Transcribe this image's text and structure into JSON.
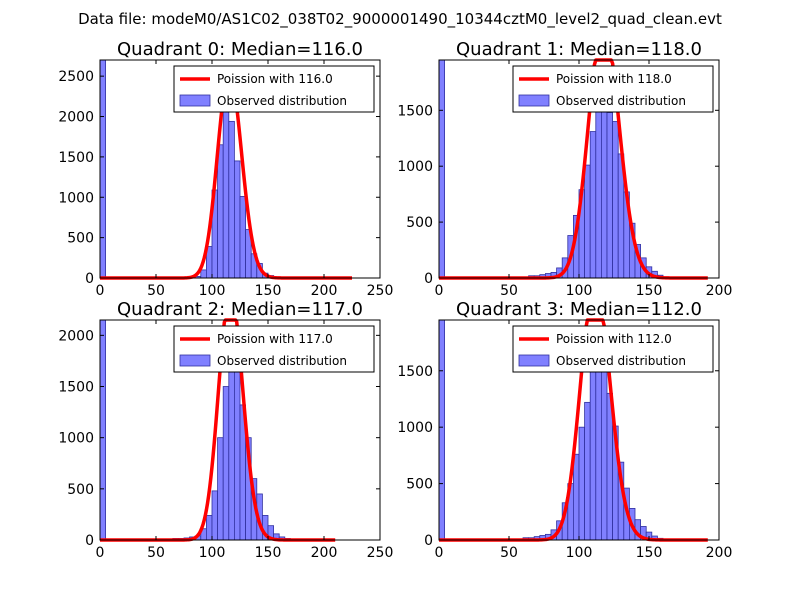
{
  "figure_title": "Data file: modeM0/AS1C02_038T02_9000001490_10344cztM0_level2_quad_clean.evt",
  "colors": {
    "bar_fill": "#8080ff",
    "bar_edge": "#3030a0",
    "fit_line": "#ff0000",
    "axis": "#000000"
  },
  "chart_data": [
    {
      "type": "bar",
      "title": "Quadrant 0: Median=116.0",
      "xlim": [
        0,
        250
      ],
      "ylim": [
        0,
        2700
      ],
      "xticks": [
        "0",
        "50",
        "100",
        "150",
        "200",
        "250"
      ],
      "yticks": [
        "0",
        "500",
        "1000",
        "1500",
        "2000",
        "2500"
      ],
      "xtick_values": [
        0,
        50,
        100,
        150,
        200,
        250
      ],
      "ytick_values": [
        0,
        500,
        1000,
        1500,
        2000,
        2500
      ],
      "bin_width": 5,
      "bins": [
        [
          0,
          2700
        ],
        [
          85,
          20
        ],
        [
          90,
          100
        ],
        [
          95,
          390
        ],
        [
          100,
          1090
        ],
        [
          105,
          1650
        ],
        [
          110,
          2180
        ],
        [
          115,
          1940
        ],
        [
          120,
          1450
        ],
        [
          125,
          1010
        ],
        [
          130,
          600
        ],
        [
          135,
          300
        ],
        [
          140,
          180
        ],
        [
          145,
          60
        ],
        [
          150,
          30
        ],
        [
          155,
          15
        ],
        [
          160,
          8
        ]
      ],
      "poisson_mean": 116.0,
      "poisson_xmax": 225,
      "legend": [
        "Poission with 116.0",
        "Observed distribution"
      ]
    },
    {
      "type": "bar",
      "title": "Quadrant 1: Median=118.0",
      "xlim": [
        0,
        200
      ],
      "ylim": [
        0,
        1950
      ],
      "xticks": [
        "0",
        "50",
        "100",
        "150",
        "200"
      ],
      "yticks": [
        "0",
        "500",
        "1000",
        "1500"
      ],
      "xtick_values": [
        0,
        50,
        100,
        150,
        200
      ],
      "ytick_values": [
        0,
        500,
        1000,
        1500
      ],
      "bin_width": 4,
      "bins": [
        [
          0,
          1950
        ],
        [
          64,
          20
        ],
        [
          68,
          20
        ],
        [
          72,
          30
        ],
        [
          76,
          40
        ],
        [
          80,
          50
        ],
        [
          84,
          90
        ],
        [
          88,
          180
        ],
        [
          92,
          380
        ],
        [
          96,
          560
        ],
        [
          100,
          790
        ],
        [
          104,
          1010
        ],
        [
          108,
          1310
        ],
        [
          112,
          1520
        ],
        [
          116,
          1700
        ],
        [
          120,
          1480
        ],
        [
          124,
          1400
        ],
        [
          128,
          1110
        ],
        [
          132,
          770
        ],
        [
          136,
          490
        ],
        [
          140,
          300
        ],
        [
          144,
          180
        ],
        [
          148,
          100
        ],
        [
          152,
          60
        ],
        [
          156,
          25
        ],
        [
          160,
          10
        ]
      ],
      "poisson_mean": 118.0,
      "poisson_xmax": 192,
      "legend": [
        "Poission with 118.0",
        "Observed distribution"
      ]
    },
    {
      "type": "bar",
      "title": "Quadrant 2: Median=117.0",
      "xlim": [
        0,
        250
      ],
      "ylim": [
        0,
        2150
      ],
      "xticks": [
        "0",
        "50",
        "100",
        "150",
        "200",
        "250"
      ],
      "yticks": [
        "0",
        "500",
        "1000",
        "1500",
        "2000"
      ],
      "xtick_values": [
        0,
        50,
        100,
        150,
        200,
        250
      ],
      "ytick_values": [
        0,
        500,
        1000,
        1500,
        2000
      ],
      "bin_width": 5,
      "bins": [
        [
          0,
          2150
        ],
        [
          65,
          15
        ],
        [
          70,
          15
        ],
        [
          75,
          20
        ],
        [
          80,
          30
        ],
        [
          85,
          40
        ],
        [
          90,
          110
        ],
        [
          95,
          240
        ],
        [
          100,
          480
        ],
        [
          105,
          1000
        ],
        [
          110,
          1500
        ],
        [
          115,
          1950
        ],
        [
          120,
          1750
        ],
        [
          125,
          1320
        ],
        [
          130,
          1000
        ],
        [
          135,
          600
        ],
        [
          140,
          450
        ],
        [
          145,
          240
        ],
        [
          150,
          140
        ],
        [
          155,
          60
        ],
        [
          160,
          30
        ],
        [
          165,
          15
        ]
      ],
      "poisson_mean": 117.0,
      "poisson_xmax": 210,
      "legend": [
        "Poission with 117.0",
        "Observed distribution"
      ]
    },
    {
      "type": "bar",
      "title": "Quadrant 3: Median=112.0",
      "xlim": [
        0,
        200
      ],
      "ylim": [
        0,
        1950
      ],
      "xticks": [
        "0",
        "50",
        "100",
        "150",
        "200"
      ],
      "yticks": [
        "0",
        "500",
        "1000",
        "1500"
      ],
      "xtick_values": [
        0,
        50,
        100,
        150,
        200
      ],
      "ytick_values": [
        0,
        500,
        1000,
        1500
      ],
      "bin_width": 4,
      "bins": [
        [
          0,
          1950
        ],
        [
          60,
          20
        ],
        [
          64,
          20
        ],
        [
          68,
          30
        ],
        [
          72,
          40
        ],
        [
          76,
          50
        ],
        [
          80,
          90
        ],
        [
          84,
          170
        ],
        [
          88,
          330
        ],
        [
          92,
          500
        ],
        [
          96,
          760
        ],
        [
          100,
          1000
        ],
        [
          104,
          1220
        ],
        [
          108,
          1530
        ],
        [
          112,
          1720
        ],
        [
          116,
          1560
        ],
        [
          120,
          1300
        ],
        [
          124,
          1010
        ],
        [
          128,
          690
        ],
        [
          132,
          460
        ],
        [
          136,
          280
        ],
        [
          140,
          180
        ],
        [
          144,
          120
        ],
        [
          148,
          70
        ],
        [
          152,
          35
        ],
        [
          156,
          15
        ]
      ],
      "poisson_mean": 112.0,
      "poisson_xmax": 192,
      "legend": [
        "Poission with 112.0",
        "Observed distribution"
      ]
    }
  ]
}
